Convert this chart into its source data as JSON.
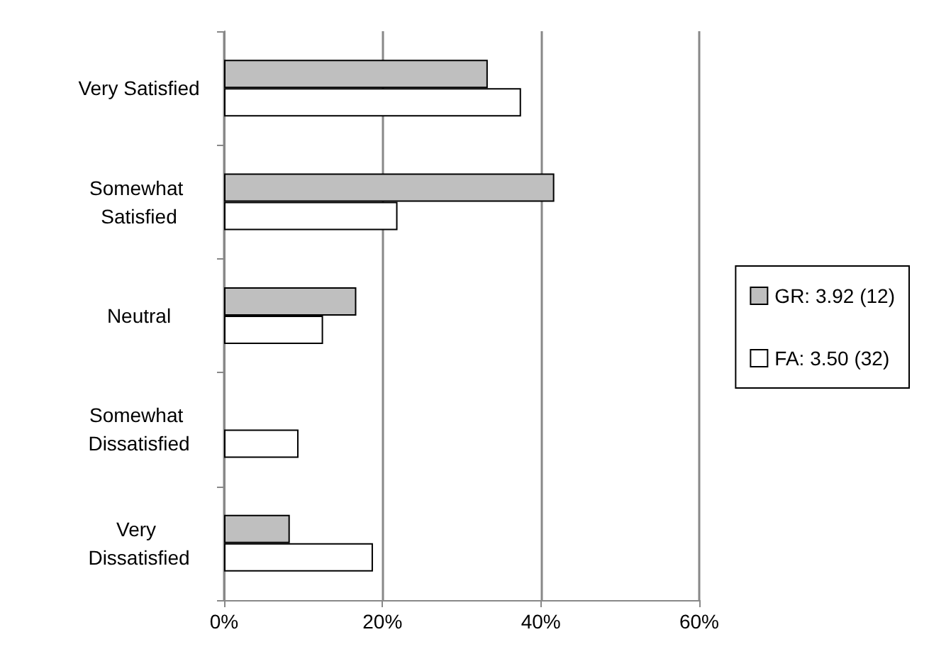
{
  "chart_data": {
    "type": "bar",
    "orientation": "horizontal",
    "categories": [
      "Very Satisfied",
      "Somewhat Satisfied",
      "Neutral",
      "Somewhat Dissatisfied",
      "Very Dissatisfied"
    ],
    "series": [
      {
        "name": "GR: 3.92 (12)",
        "color": "#bfbfbf",
        "values": [
          33.3,
          41.7,
          16.7,
          null,
          8.3
        ]
      },
      {
        "name": "FA: 3.50 (32)",
        "color": "#ffffff",
        "values": [
          37.5,
          21.9,
          12.5,
          9.4,
          18.8
        ]
      }
    ],
    "xlim": [
      0,
      60
    ],
    "xticks": [
      {
        "value": 0,
        "label": "0%"
      },
      {
        "value": 20,
        "label": "20%"
      },
      {
        "value": 40,
        "label": "40%"
      },
      {
        "value": 60,
        "label": "60%"
      }
    ],
    "grid": "x",
    "legend": "right"
  }
}
